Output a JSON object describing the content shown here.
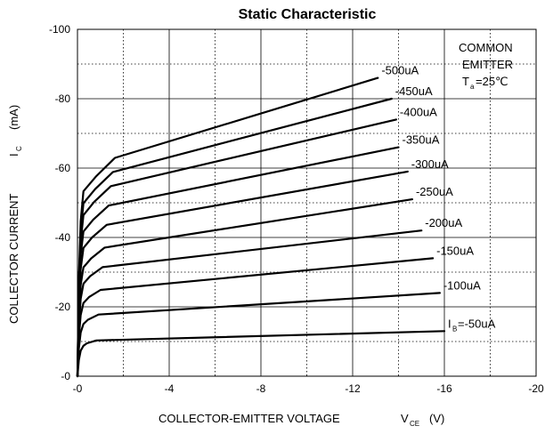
{
  "chart_data": {
    "type": "line",
    "title": "Static Characteristic",
    "xlabel": "COLLECTOR-EMITTER VOLTAGE",
    "xlabel_symbol": "V",
    "xlabel_subscript": "CE",
    "xlabel_unit": "(V)",
    "ylabel": "COLLECTOR CURRENT",
    "ylabel_symbol": "I",
    "ylabel_subscript": "C",
    "ylabel_unit": "(mA)",
    "xlim": [
      0,
      -20
    ],
    "ylim": [
      0,
      -100
    ],
    "xticks": [
      "-0",
      "-4",
      "-8",
      "-12",
      "-16",
      "-20"
    ],
    "yticks": [
      "-0",
      "-20",
      "-40",
      "-60",
      "-80",
      "-100"
    ],
    "grid": "dotted",
    "annotation": {
      "line1": "COMMON",
      "line2": "EMITTER",
      "ta_symbol": "T",
      "ta_subscript": "a",
      "ta_value": "=25℃"
    },
    "series": [
      {
        "name": "I_B=-50uA",
        "label_prefix": "I",
        "label_sub": "B",
        "label_text": "=-50uA",
        "sat": -10.2,
        "end": [
          -16,
          -13
        ]
      },
      {
        "name": "-100uA",
        "label_text": "-100uA",
        "sat": -17.5,
        "end": [
          -15.8,
          -24
        ]
      },
      {
        "name": "-150uA",
        "label_text": "-150uA",
        "sat": -24.5,
        "end": [
          -15.5,
          -34
        ]
      },
      {
        "name": "-200uA",
        "label_text": "-200uA",
        "sat": -31,
        "end": [
          -15,
          -42
        ]
      },
      {
        "name": "-250uA",
        "label_text": "-250uA",
        "sat": -36.5,
        "end": [
          -14.6,
          -51
        ]
      },
      {
        "name": "-300uA",
        "label_text": "-300uA",
        "sat": -43,
        "end": [
          -14.4,
          -59
        ]
      },
      {
        "name": "-350uA",
        "label_text": "-350uA",
        "sat": -48.5,
        "end": [
          -14,
          -66
        ]
      },
      {
        "name": "-400uA",
        "label_text": "-400uA",
        "sat": -54,
        "end": [
          -13.9,
          -74
        ]
      },
      {
        "name": "-450uA",
        "label_text": "-450uA",
        "sat": -58,
        "end": [
          -13.7,
          -80
        ]
      },
      {
        "name": "-500uA",
        "label_text": "-500uA",
        "sat": -62,
        "end": [
          -13.1,
          -86
        ]
      }
    ]
  }
}
